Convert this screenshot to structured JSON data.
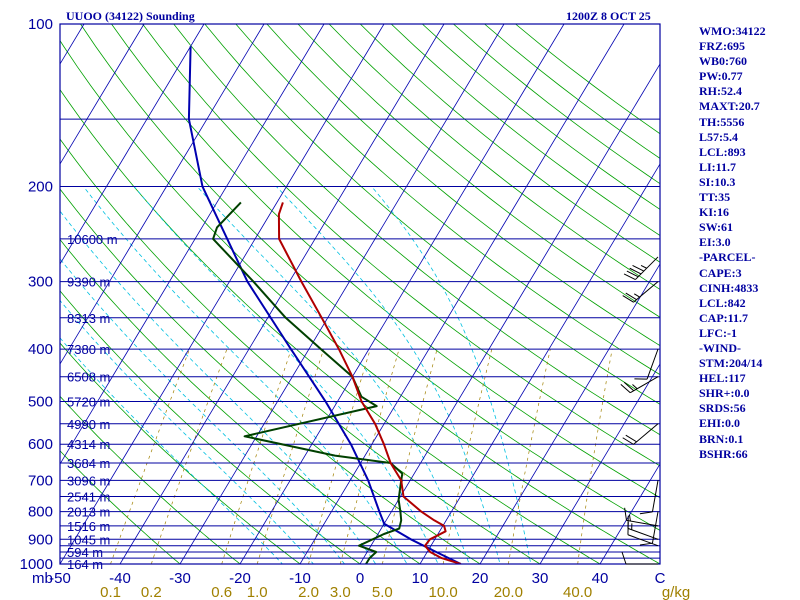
{
  "header": {
    "title": "UUOO (34122) Sounding",
    "datetime": "1200Z  8 OCT 25"
  },
  "indices": [
    "WMO:34122",
    "FRZ:695",
    "WB0:760",
    "PW:0.77",
    "RH:52.4",
    "MAXT:20.7",
    "TH:5556",
    "L57:5.4",
    "LCL:893",
    "LI:11.7",
    "SI:10.3",
    "TT:35",
    "KI:16",
    "SW:61",
    "EI:3.0",
    "-PARCEL-",
    "CAPE:3",
    "CINH:4833",
    "LCL:842",
    "CAP:11.7",
    "LFC:-1",
    "-WIND-",
    "STM:204/14",
    "HEL:117",
    "SHR+:0.0",
    "SRDS:56",
    "EHI:0.0",
    "BRN:0.1",
    "BSHR:66"
  ],
  "colors": {
    "frame": "#0000a0",
    "isobar": "#0000a0",
    "isotherm": "#0000b0",
    "dry_adiabat": "#00a000",
    "moist_adiabat": "#00c0e0",
    "mixing_ratio": "#a08000",
    "temperature": "#b00000",
    "dewpoint": "#004000",
    "parcel": "#0000b0",
    "wind_barb": "#000000"
  },
  "chart_data": {
    "type": "skew-t log-p sounding",
    "title": "UUOO (34122) Sounding",
    "pressure_unit_label": "mb",
    "mixing_ratio_unit_label": "g/kg",
    "pressure_range": [
      1000,
      100
    ],
    "temperature_range": [
      -50,
      50
    ],
    "pressure_ticks": [
      100,
      200,
      300,
      400,
      500,
      600,
      700,
      800,
      900,
      1000
    ],
    "temperature_ticks": [
      -50,
      -40,
      -30,
      -20,
      -10,
      0,
      10,
      20,
      30,
      40,
      50
    ],
    "temperature_tick_labels": [
      "-50",
      "-40",
      "-30",
      "-20",
      "-10",
      "0",
      "10",
      "20",
      "30",
      "40",
      "C"
    ],
    "mixing_ratio_ticks": [
      0.1,
      0.2,
      0.6,
      1.0,
      2.0,
      3.0,
      5.0,
      10.0,
      20.0,
      40.0
    ],
    "mixing_ratio_tick_labels": [
      "0.1",
      "0.2",
      "0.6",
      "1.0",
      "2.0",
      "3.0",
      "5.0",
      "10.0",
      "20.0",
      "40.0"
    ],
    "isobar_levels": [
      100,
      150,
      200,
      250,
      300,
      350,
      400,
      450,
      500,
      550,
      600,
      650,
      700,
      750,
      800,
      850,
      900,
      925,
      950,
      975,
      1000
    ],
    "height_labels": [
      {
        "p": 250,
        "label": "10600 m"
      },
      {
        "p": 300,
        "label": "9390 m"
      },
      {
        "p": 350,
        "label": "8313 m"
      },
      {
        "p": 400,
        "label": "7380 m"
      },
      {
        "p": 450,
        "label": "6508 m"
      },
      {
        "p": 500,
        "label": "5720 m"
      },
      {
        "p": 550,
        "label": "4990 m"
      },
      {
        "p": 600,
        "label": "4314 m"
      },
      {
        "p": 650,
        "label": "3684 m"
      },
      {
        "p": 700,
        "label": "3096 m"
      },
      {
        "p": 750,
        "label": "2541 m"
      },
      {
        "p": 800,
        "label": "2013 m"
      },
      {
        "p": 850,
        "label": "1516 m"
      },
      {
        "p": 900,
        "label": "1045 m"
      },
      {
        "p": 950,
        "label": "594 m"
      },
      {
        "p": 1000,
        "label": "164 m"
      }
    ],
    "temperature_profile": [
      {
        "p": 1000,
        "t": 16.8
      },
      {
        "p": 975,
        "t": 13.0
      },
      {
        "p": 950,
        "t": 10.5
      },
      {
        "p": 925,
        "t": 9.0
      },
      {
        "p": 900,
        "t": 9.2
      },
      {
        "p": 870,
        "t": 11.0
      },
      {
        "p": 850,
        "t": 10.2
      },
      {
        "p": 830,
        "t": 8.0
      },
      {
        "p": 800,
        "t": 5.0
      },
      {
        "p": 750,
        "t": 0.5
      },
      {
        "p": 700,
        "t": -1.5
      },
      {
        "p": 650,
        "t": -5.0
      },
      {
        "p": 600,
        "t": -8.0
      },
      {
        "p": 550,
        "t": -11.5
      },
      {
        "p": 500,
        "t": -16.0
      },
      {
        "p": 450,
        "t": -20.0
      },
      {
        "p": 400,
        "t": -25.0
      },
      {
        "p": 350,
        "t": -31.0
      },
      {
        "p": 300,
        "t": -38.0
      },
      {
        "p": 250,
        "t": -46.0
      },
      {
        "p": 225,
        "t": -48.5
      },
      {
        "p": 214,
        "t": -49.0
      }
    ],
    "dewpoint_profile": [
      {
        "p": 1000,
        "t": 1.0
      },
      {
        "p": 975,
        "t": 1.0
      },
      {
        "p": 950,
        "t": 1.5
      },
      {
        "p": 925,
        "t": -2.0
      },
      {
        "p": 880,
        "t": 1.0
      },
      {
        "p": 860,
        "t": 3.0
      },
      {
        "p": 830,
        "t": 2.5
      },
      {
        "p": 800,
        "t": 1.5
      },
      {
        "p": 760,
        "t": 0.0
      },
      {
        "p": 700,
        "t": -1.5
      },
      {
        "p": 680,
        "t": -2.0
      },
      {
        "p": 650,
        "t": -5.0
      },
      {
        "p": 630,
        "t": -15.0
      },
      {
        "p": 580,
        "t": -32.0
      },
      {
        "p": 510,
        "t": -13.0
      },
      {
        "p": 490,
        "t": -16.5
      },
      {
        "p": 450,
        "t": -20.0
      },
      {
        "p": 400,
        "t": -28.0
      },
      {
        "p": 350,
        "t": -37.0
      },
      {
        "p": 300,
        "t": -46.0
      },
      {
        "p": 250,
        "t": -57.0
      },
      {
        "p": 238,
        "t": -57.5
      },
      {
        "p": 214,
        "t": -56.0
      }
    ],
    "parcel_profile": [
      {
        "p": 1000,
        "t": 16.8
      },
      {
        "p": 950,
        "t": 11.5
      },
      {
        "p": 900,
        "t": 6.0
      },
      {
        "p": 842,
        "t": 0.0
      },
      {
        "p": 800,
        "t": -2.0
      },
      {
        "p": 700,
        "t": -7.0
      },
      {
        "p": 600,
        "t": -13.5
      },
      {
        "p": 500,
        "t": -22.0
      },
      {
        "p": 400,
        "t": -33.0
      },
      {
        "p": 300,
        "t": -47.0
      },
      {
        "p": 200,
        "t": -64.0
      },
      {
        "p": 150,
        "t": -73.0
      },
      {
        "p": 110,
        "t": -80.0
      }
    ],
    "wind_barbs": [
      {
        "p": 1000,
        "dir": 270,
        "kt": 10
      },
      {
        "p": 925,
        "dir": 290,
        "kt": 10
      },
      {
        "p": 900,
        "dir": 290,
        "kt": 15
      },
      {
        "p": 850,
        "dir": 280,
        "kt": 15
      },
      {
        "p": 800,
        "dir": 190,
        "kt": 10
      },
      {
        "p": 700,
        "dir": 190,
        "kt": 10
      },
      {
        "p": 550,
        "dir": 230,
        "kt": 20
      },
      {
        "p": 450,
        "dir": 240,
        "kt": 25
      },
      {
        "p": 400,
        "dir": 200,
        "kt": 10
      },
      {
        "p": 300,
        "dir": 230,
        "kt": 25
      },
      {
        "p": 270,
        "dir": 225,
        "kt": 45
      }
    ]
  }
}
